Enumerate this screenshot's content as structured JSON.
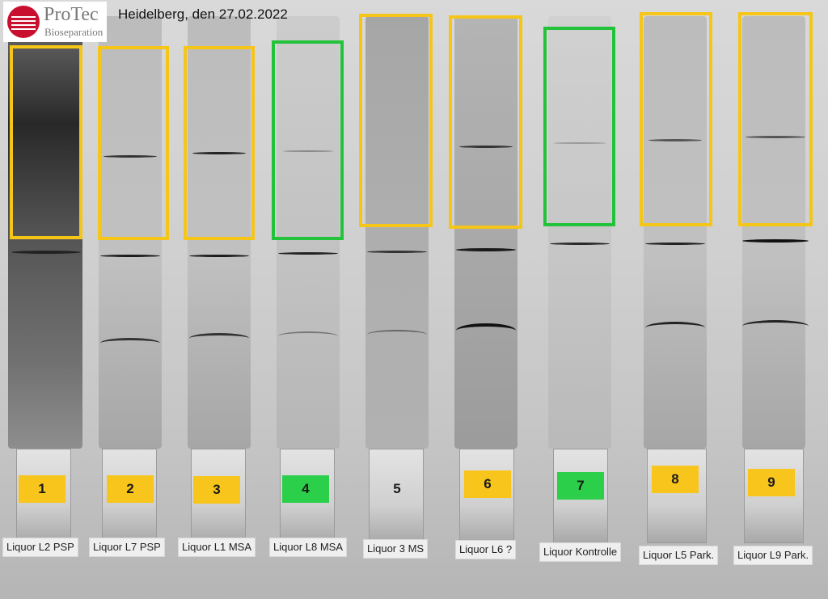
{
  "header": {
    "logo": {
      "name": "ProTec",
      "sub": "Bioseparation"
    },
    "date_text": "Heidelberg, den 27.02.2022"
  },
  "colors": {
    "yellow": "#f5c518",
    "green": "#22c33a"
  },
  "lanes": [
    {
      "number": "1",
      "label": "Liquor L2 PSP",
      "box": "yellow",
      "tag": "yellow"
    },
    {
      "number": "2",
      "label": "Liquor L7 PSP",
      "box": "yellow",
      "tag": "yellow"
    },
    {
      "number": "3",
      "label": "Liquor L1 MSA",
      "box": "yellow",
      "tag": "yellow"
    },
    {
      "number": "4",
      "label": "Liquor L8 MSA",
      "box": "green",
      "tag": "green"
    },
    {
      "number": "5",
      "label": "Liquor 3 MS",
      "box": "yellow",
      "tag": "none"
    },
    {
      "number": "6",
      "label": "Liquor L6 ?",
      "box": "yellow",
      "tag": "yellow"
    },
    {
      "number": "7",
      "label": "Liquor Kontrolle",
      "box": "green",
      "tag": "green"
    },
    {
      "number": "8",
      "label": "Liquor L5 Park.",
      "box": "yellow",
      "tag": "yellow"
    },
    {
      "number": "9",
      "label": "Liquor L9 Park.",
      "box": "yellow",
      "tag": "yellow"
    }
  ]
}
